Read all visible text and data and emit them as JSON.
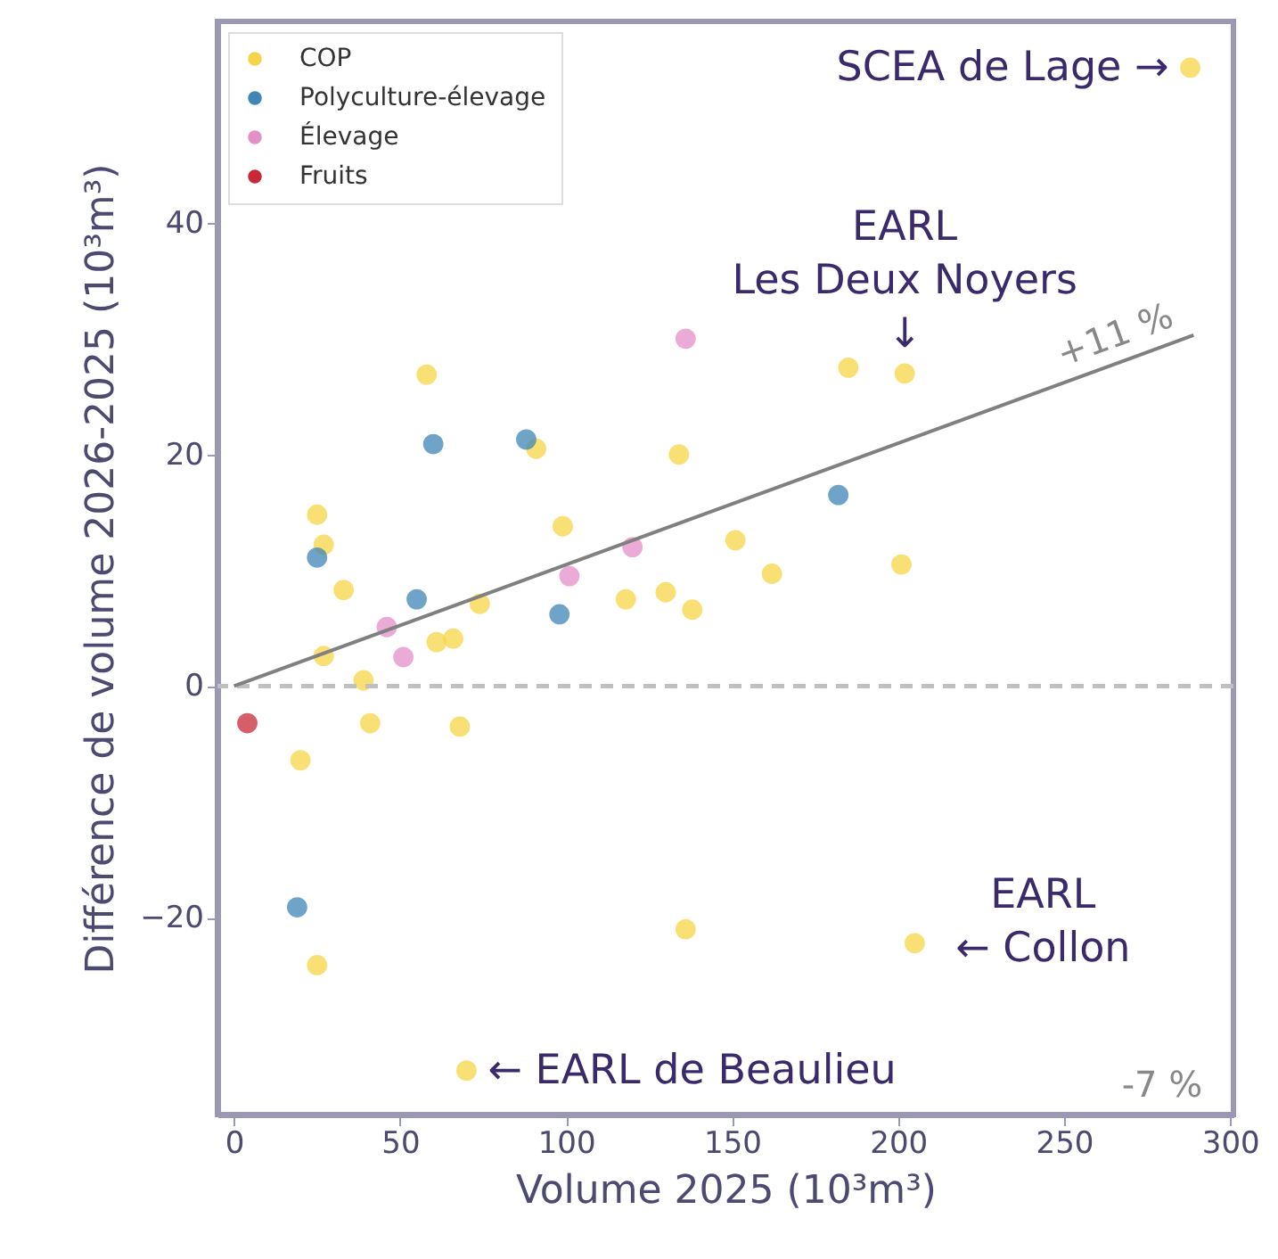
{
  "chart_data": {
    "type": "scatter",
    "xlabel": "Volume 2025 (10³m³)",
    "ylabel": "Différence de volume 2026-2025 (10³m³)",
    "xlim": [
      -5,
      301
    ],
    "ylim": [
      -37,
      57.4
    ],
    "xticks": [
      0,
      50,
      100,
      150,
      200,
      250,
      300
    ],
    "yticks": [
      -20,
      0,
      20,
      40
    ],
    "grid": false,
    "legend": "top left",
    "marker": "circle",
    "series": [
      {
        "name": "COP",
        "color": "#f5d547",
        "x": [
          288,
          185,
          202,
          58,
          91,
          134,
          25,
          27,
          33,
          99,
          74,
          118,
          130,
          138,
          151,
          162,
          201,
          61,
          66,
          27,
          39,
          41,
          68,
          20,
          25,
          70,
          136,
          205
        ],
        "values": [
          53.4,
          27.5,
          27,
          26.9,
          20.5,
          20,
          14.8,
          12.2,
          8.3,
          13.8,
          7.1,
          7.5,
          8.1,
          6.6,
          12.6,
          9.7,
          10.5,
          3.8,
          4.1,
          2.6,
          0.5,
          -3.2,
          -3.5,
          -6.4,
          -24.1,
          -33.2,
          -21,
          -22.2
        ]
      },
      {
        "name": "Polyculture-élevage",
        "color": "#3f86b5",
        "x": [
          60,
          88,
          25,
          55,
          98,
          182,
          19
        ],
        "values": [
          20.9,
          21.3,
          11.1,
          7.5,
          6.2,
          16.5,
          -19.1
        ]
      },
      {
        "name": "Élevage",
        "color": "#e38fc8",
        "x": [
          136,
          120,
          101,
          46,
          51
        ],
        "values": [
          30,
          12,
          9.5,
          5.1,
          2.5
        ]
      },
      {
        "name": "Fruits",
        "color": "#c8283a",
        "x": [
          4
        ],
        "values": [
          -3.2
        ]
      },
      {
        "type": "line",
        "color": "#808080",
        "marker": "none",
        "x": [
          0,
          289
        ],
        "values": [
          0,
          30.3
        ]
      }
    ],
    "ref_lines": [
      {
        "axis": "y",
        "value": 0,
        "color": "#c0c0c0",
        "line_style": "dashed"
      }
    ],
    "annotations": [
      {
        "text": "SCEA de Lage →",
        "x": 288,
        "y": 53.4
      },
      {
        "text": "EARL\nLes Deux Noyers\n↓",
        "x": 202,
        "y": 27
      },
      {
        "text": "EARL\n← Collon",
        "x": 205,
        "y": -22.2
      },
      {
        "text": "← EARL de Beaulieu",
        "x": 70,
        "y": -33.2
      },
      {
        "text": "+11 %",
        "x": 268,
        "y": 28.2
      },
      "-7 %"
    ]
  }
}
